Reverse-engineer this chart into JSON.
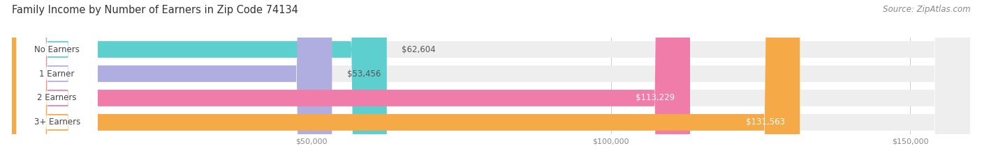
{
  "title": "Family Income by Number of Earners in Zip Code 74134",
  "source": "Source: ZipAtlas.com",
  "categories": [
    "No Earners",
    "1 Earner",
    "2 Earners",
    "3+ Earners"
  ],
  "values": [
    62604,
    53456,
    113229,
    131563
  ],
  "bar_colors": [
    "#5ecfcf",
    "#b0aee0",
    "#f07caa",
    "#f5a947"
  ],
  "bar_bg_color": "#eeeeee",
  "xlim_max": 160000,
  "xticks": [
    50000,
    100000,
    150000
  ],
  "xtick_labels": [
    "$50,000",
    "$100,000",
    "$150,000"
  ],
  "title_fontsize": 10.5,
  "source_fontsize": 8.5,
  "label_fontsize": 8.5,
  "value_fontsize": 8.5,
  "figsize": [
    14.06,
    2.33
  ],
  "dpi": 100
}
